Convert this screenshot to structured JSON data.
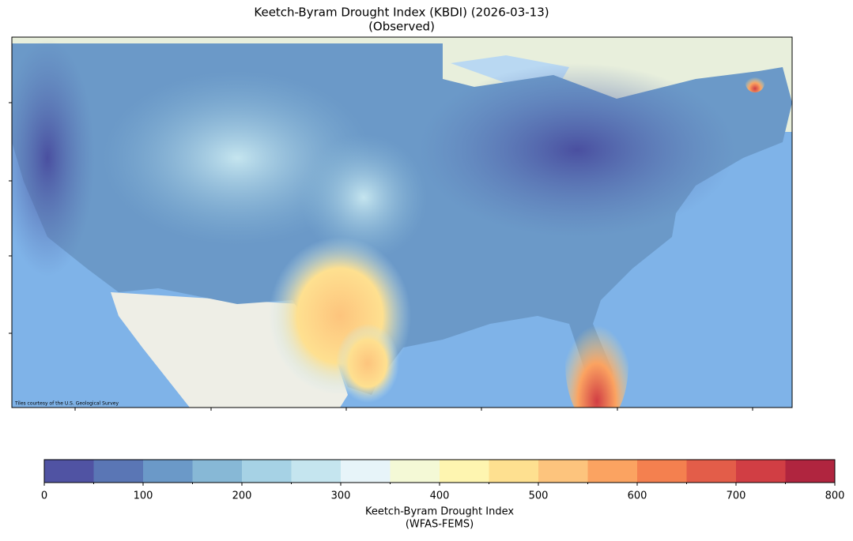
{
  "title": "Keetch-Byram Drought Index (KBDI) (2026-03-13)",
  "subtitle": "(Observed)",
  "attribution": "Tiles courtesy of the U.S. Geological Survey",
  "colorbar": {
    "bins": [
      0,
      50,
      100,
      150,
      200,
      250,
      300,
      350,
      400,
      450,
      500,
      550,
      600,
      650,
      700,
      750,
      800
    ],
    "colors": [
      "#5053a3",
      "#5a76b5",
      "#6b99c8",
      "#87b8d6",
      "#a6d2e5",
      "#c5e5ef",
      "#e7f4f9",
      "#f4f9d6",
      "#fef5b0",
      "#fee090",
      "#fdc47d",
      "#fba361",
      "#f4804f",
      "#e35d49",
      "#d13e44",
      "#b0253f"
    ],
    "ticks": [
      0,
      100,
      200,
      300,
      400,
      500,
      600,
      700,
      800
    ],
    "xlim": [
      0,
      800
    ],
    "label": "Keetch-Byram Drought Index",
    "sublabel": "(WFAS-FEMS)"
  }
}
